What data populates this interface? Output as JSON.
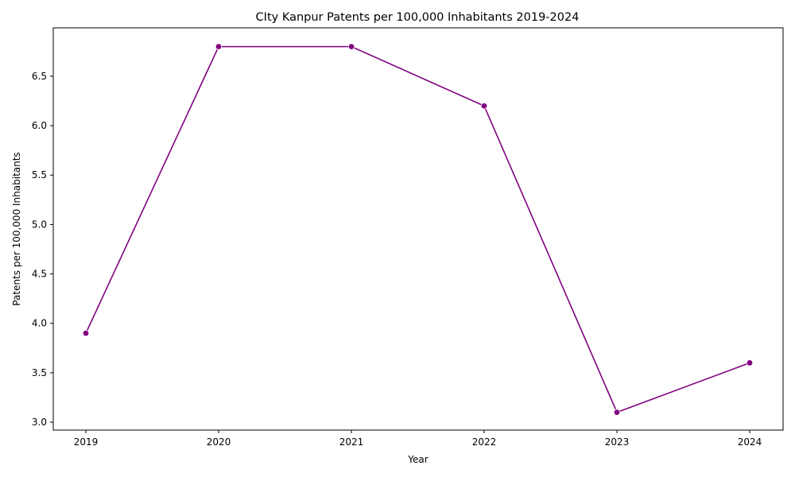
{
  "chart_data": {
    "type": "line",
    "title": "CIty Kanpur Patents per 100,000 Inhabitants 2019-2024",
    "xlabel": "Year",
    "ylabel": "Patents per 100,000 Inhabitants",
    "x": [
      "2019",
      "2020",
      "2021",
      "2022",
      "2023",
      "2024"
    ],
    "series": [
      {
        "values": [
          3.9,
          6.8,
          6.8,
          6.2,
          3.1,
          3.6
        ],
        "color": "#800080",
        "marker": "circle"
      }
    ],
    "ylim": [
      2.92,
      6.99
    ],
    "yticks": [
      3.0,
      3.5,
      4.0,
      4.5,
      5.0,
      5.5,
      6.0,
      6.5
    ],
    "ytick_labels": [
      "3.0",
      "3.5",
      "4.0",
      "4.5",
      "5.0",
      "5.5",
      "6.0",
      "6.5"
    ],
    "grid": false,
    "legend": "none"
  }
}
